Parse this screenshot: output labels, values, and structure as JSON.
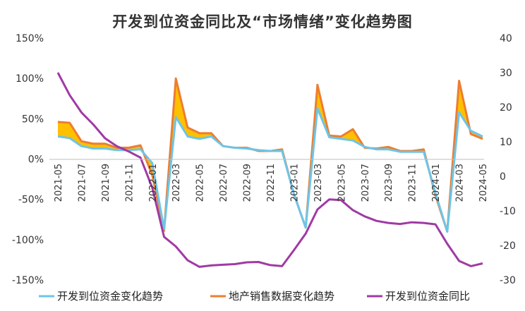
{
  "chart_data": {
    "type": "area",
    "title": "开发到位资金同比及“市场情绪”变化趋势图",
    "xlabel": "",
    "ylabel": "",
    "ylim_left": [
      -150,
      150
    ],
    "ylim_right": [
      -30,
      40
    ],
    "left_ticks": [
      "150%",
      "100%",
      "50%",
      "0%",
      "-50%",
      "-100%",
      "-150%"
    ],
    "right_ticks": [
      "40",
      "30",
      "20",
      "10",
      "0",
      "-10",
      "-20",
      "-30"
    ],
    "x_tick_labels": [
      "2021-05",
      "2021-07",
      "2021-09",
      "2021-11",
      "2022-01",
      "2022-03",
      "2022-05",
      "2022-07",
      "2022-09",
      "2022-11",
      "2023-01",
      "2023-03",
      "2023-05",
      "2023-07",
      "2023-09",
      "2023-11",
      "2024-01",
      "2024-03",
      "2024-05"
    ],
    "categories": [
      "2021-05",
      "2021-06",
      "2021-07",
      "2021-08",
      "2021-09",
      "2021-10",
      "2021-11",
      "2021-12",
      "2022-01",
      "2022-02",
      "2022-03",
      "2022-04",
      "2022-05",
      "2022-06",
      "2022-07",
      "2022-08",
      "2022-09",
      "2022-10",
      "2022-11",
      "2022-12",
      "2023-01",
      "2023-02",
      "2023-03",
      "2023-04",
      "2023-05",
      "2023-06",
      "2023-07",
      "2023-08",
      "2023-09",
      "2023-10",
      "2023-11",
      "2023-12",
      "2024-01",
      "2024-02",
      "2024-03",
      "2024-04",
      "2024-05"
    ],
    "series": [
      {
        "name": "开发到位资金变化趋势",
        "axis": "left",
        "color": "#6cc5e8",
        "values": [
          28,
          26,
          16,
          13,
          13,
          11,
          11,
          12,
          -5,
          -87,
          52,
          28,
          25,
          28,
          16,
          14,
          13,
          11,
          10,
          10,
          -43,
          -85,
          63,
          27,
          25,
          23,
          15,
          12,
          12,
          9,
          9,
          9,
          -42,
          -90,
          58,
          35,
          28
        ]
      },
      {
        "name": "地产销售数据变化趋势",
        "axis": "left",
        "color": "#ed7d31",
        "values": [
          46,
          45,
          22,
          19,
          19,
          14,
          14,
          17,
          -20,
          -89,
          100,
          39,
          32,
          32,
          16,
          14,
          14,
          10,
          10,
          12,
          -43,
          -85,
          92,
          29,
          28,
          37,
          14,
          13,
          15,
          10,
          10,
          12,
          -45,
          -90,
          97,
          31,
          25
        ]
      },
      {
        "name": "开发到位资金同比",
        "axis": "right",
        "color": "#a03aa4",
        "values": [
          30,
          23.5,
          18.5,
          15,
          11,
          8.7,
          7.2,
          5.4,
          -3.3,
          -17.5,
          -20.3,
          -24.3,
          -26.2,
          -25.8,
          -25.6,
          -25.4,
          -24.9,
          -24.8,
          -25.7,
          -26,
          -21.4,
          -16.6,
          -9.6,
          -6.7,
          -6.9,
          -9.8,
          -11.6,
          -12.9,
          -13.5,
          -13.8,
          -13.3,
          -13.5,
          -13.9,
          -19.5,
          -24.5,
          -26,
          -25.2
        ]
      }
    ],
    "fill_between": {
      "upper": "地产销售数据变化趋势",
      "lower": "开发到位资金变化趋势",
      "color": "#ffc000"
    },
    "grid": false,
    "legend_position": "bottom"
  }
}
